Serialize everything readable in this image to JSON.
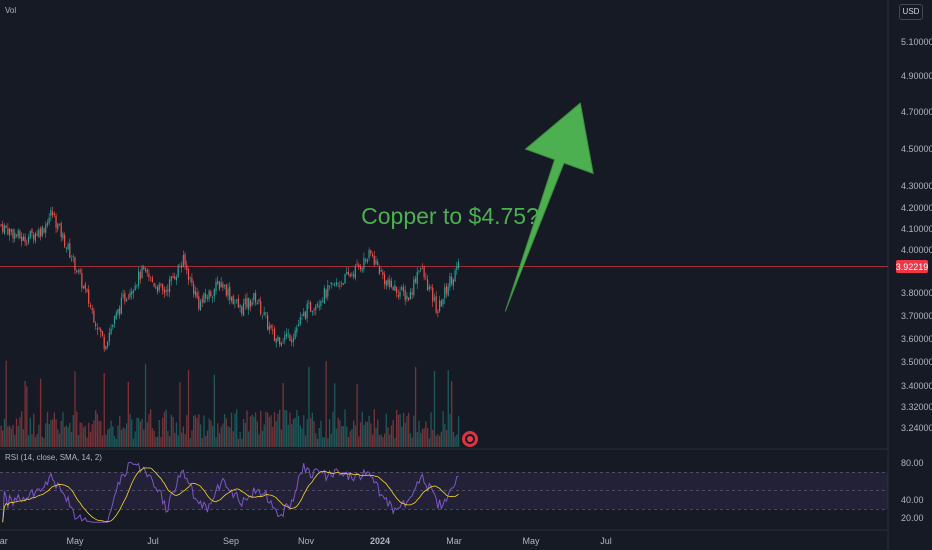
{
  "header": {
    "vol_label": "Vol",
    "currency": "USD"
  },
  "rsi": {
    "label": "RSI (14, close, SMA, 14, 2)",
    "ticks": [
      "80.00",
      "40.00",
      "20.00"
    ]
  },
  "price_axis": {
    "ticks": [
      "5.10000",
      "4.90000",
      "4.70000",
      "4.50000",
      "4.30000",
      "4.20000",
      "4.10000",
      "4.00000",
      "3.80000",
      "3.70000",
      "3.60000",
      "3.50000",
      "3.40000",
      "3.32000",
      "3.24000"
    ],
    "current_price": "3.92219"
  },
  "time_axis": {
    "labels": [
      "Mar",
      "May",
      "Jul",
      "Sep",
      "Nov",
      "2024",
      "Mar",
      "May",
      "Jul"
    ]
  },
  "annotation": {
    "text": "Copper to $4.75?",
    "color": "#4caf50"
  },
  "colors": {
    "up": "#26a69a",
    "down": "#ef5350",
    "rsi_line": "#7e57c2",
    "rsi_sma": "#f9d71c",
    "price_line": "#f23645",
    "background": "#161a25"
  },
  "chart_data": {
    "type": "candlestick",
    "series_name": "Copper",
    "price_range": [
      3.5,
      4.2
    ],
    "last_price": 3.92219,
    "trend_points": [
      {
        "date": "2023-03-01",
        "close": 4.12
      },
      {
        "date": "2023-03-20",
        "close": 4.05
      },
      {
        "date": "2023-04-05",
        "close": 4.1
      },
      {
        "date": "2023-04-12",
        "close": 4.18
      },
      {
        "date": "2023-05-01",
        "close": 3.93
      },
      {
        "date": "2023-05-15",
        "close": 3.72
      },
      {
        "date": "2023-05-25",
        "close": 3.58
      },
      {
        "date": "2023-06-10",
        "close": 3.78
      },
      {
        "date": "2023-06-25",
        "close": 3.9
      },
      {
        "date": "2023-07-12",
        "close": 3.8
      },
      {
        "date": "2023-07-28",
        "close": 3.95
      },
      {
        "date": "2023-08-10",
        "close": 3.75
      },
      {
        "date": "2023-08-28",
        "close": 3.85
      },
      {
        "date": "2023-09-12",
        "close": 3.73
      },
      {
        "date": "2023-09-25",
        "close": 3.78
      },
      {
        "date": "2023-10-10",
        "close": 3.6
      },
      {
        "date": "2023-10-25",
        "close": 3.62
      },
      {
        "date": "2023-11-05",
        "close": 3.72
      },
      {
        "date": "2023-11-25",
        "close": 3.82
      },
      {
        "date": "2023-12-10",
        "close": 3.88
      },
      {
        "date": "2023-12-28",
        "close": 3.98
      },
      {
        "date": "2024-01-10",
        "close": 3.84
      },
      {
        "date": "2024-01-28",
        "close": 3.78
      },
      {
        "date": "2024-02-05",
        "close": 3.93
      },
      {
        "date": "2024-02-20",
        "close": 3.72
      },
      {
        "date": "2024-03-01",
        "close": 3.86
      },
      {
        "date": "2024-03-08",
        "close": 3.92
      }
    ],
    "rsi_range": [
      20,
      80
    ],
    "rsi_bands": [
      30,
      50,
      70
    ],
    "projection": {
      "from_date": "2024-04-15",
      "from_price": 3.72,
      "to_date": "2024-06-15",
      "to_price": 4.75
    }
  }
}
